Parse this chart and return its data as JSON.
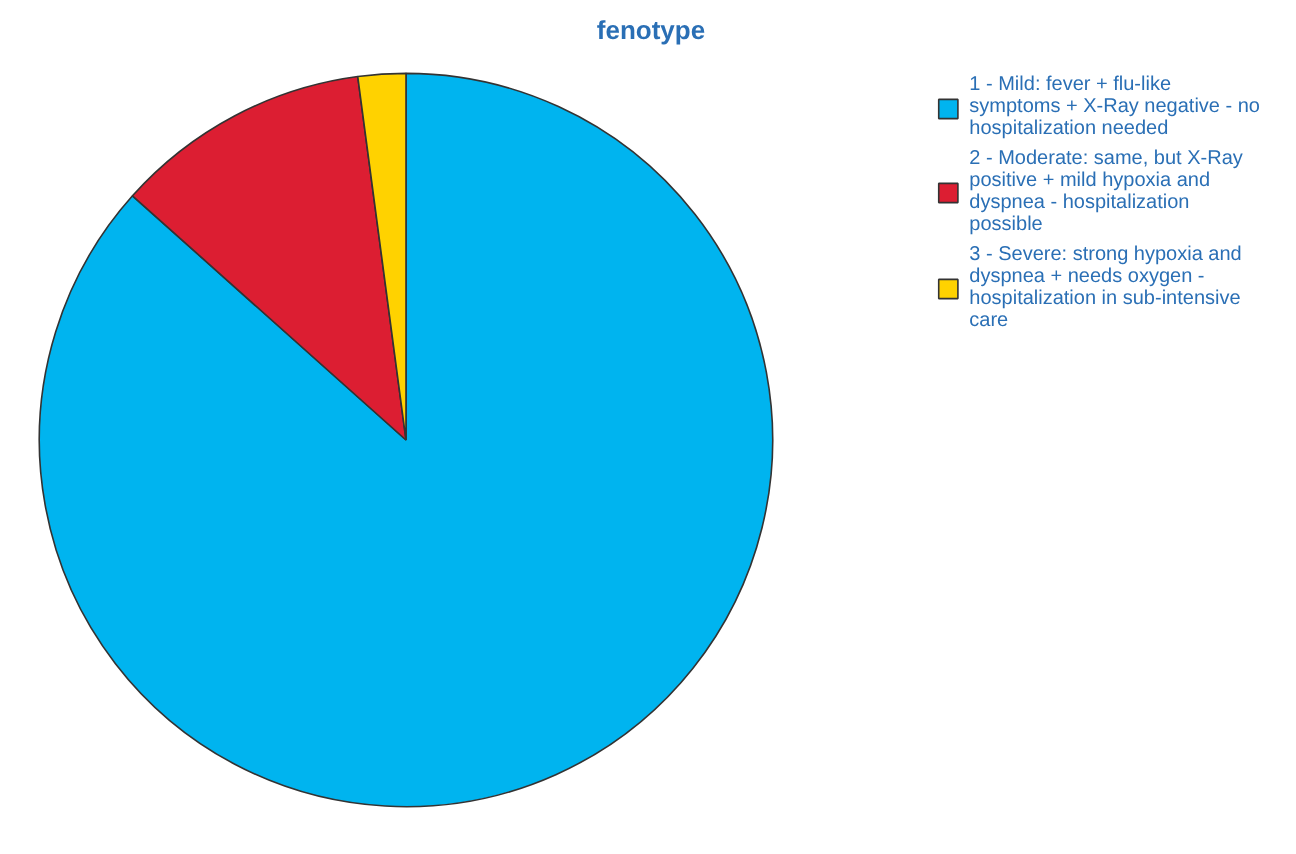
{
  "chart_data": {
    "type": "pie",
    "title": "fenotype",
    "categories": [
      "1 - Mild: fever + flu-like symptoms + X-Ray negative - no hospitalization needed",
      "2 - Moderate: same, but X-Ray positive + mild hypoxia and dyspnea - hospitalization possible",
      "3 - Severe: strong hypoxia and dyspnea + needs oxygen - hospitalization in sub-intensive care"
    ],
    "values": [
      86.6,
      11.3,
      2.1
    ],
    "colors": [
      "#00b4ef",
      "#dc1e32",
      "#ffd200"
    ],
    "legend": "right"
  }
}
